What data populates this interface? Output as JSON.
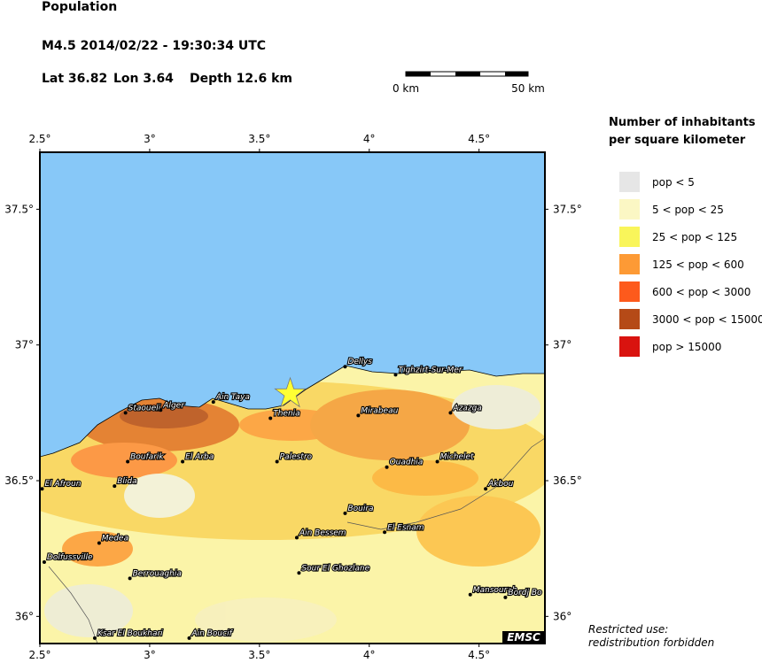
{
  "header": {
    "title": "Population",
    "event": "M4.5  2014/02/22 - 19:30:34 UTC",
    "lat": "Lat 36.82",
    "lon": "Lon 3.64",
    "depth": "Depth  12.6 km"
  },
  "scale": {
    "start": "0 km",
    "end": "50 km"
  },
  "map": {
    "lonlim": [
      2.5,
      4.8
    ],
    "latlim": [
      35.9,
      37.71
    ],
    "lonticks": [
      {
        "value": 2.5,
        "label": "2.5°"
      },
      {
        "value": 3,
        "label": "3°"
      },
      {
        "value": 3.5,
        "label": "3.5°"
      },
      {
        "value": 4,
        "label": "4°"
      },
      {
        "value": 4.5,
        "label": "4.5°"
      }
    ],
    "latticks": [
      {
        "value": 36,
        "label": "36°"
      },
      {
        "value": 36.5,
        "label": "36.5°"
      },
      {
        "value": 37,
        "label": "37°"
      },
      {
        "value": 37.5,
        "label": "37.5°"
      }
    ],
    "epicenter": {
      "lon": 3.64,
      "lat": 36.82
    },
    "cities": [
      {
        "name": "Dellys",
        "lon": 3.89,
        "lat": 36.92
      },
      {
        "name": "Tighzirt-Sur-Mer",
        "lon": 4.12,
        "lat": 36.89
      },
      {
        "name": "Staoueli",
        "lon": 2.89,
        "lat": 36.75
      },
      {
        "name": "Alger",
        "lon": 3.05,
        "lat": 36.76
      },
      {
        "name": "Ain Taya",
        "lon": 3.29,
        "lat": 36.79
      },
      {
        "name": "Thenia",
        "lon": 3.55,
        "lat": 36.73
      },
      {
        "name": "Mirabeau",
        "lon": 3.95,
        "lat": 36.74
      },
      {
        "name": "Azazga",
        "lon": 4.37,
        "lat": 36.75
      },
      {
        "name": "Boufarik",
        "lon": 2.9,
        "lat": 36.57
      },
      {
        "name": "El Arba",
        "lon": 3.15,
        "lat": 36.57
      },
      {
        "name": "Palestro",
        "lon": 3.58,
        "lat": 36.57
      },
      {
        "name": "Ouadhia",
        "lon": 4.08,
        "lat": 36.55
      },
      {
        "name": "Michelet",
        "lon": 4.31,
        "lat": 36.57
      },
      {
        "name": "El Afroun",
        "lon": 2.51,
        "lat": 36.47
      },
      {
        "name": "Blida",
        "lon": 2.84,
        "lat": 36.48
      },
      {
        "name": "Akbou",
        "lon": 4.53,
        "lat": 36.47
      },
      {
        "name": "Bouira",
        "lon": 3.89,
        "lat": 36.38
      },
      {
        "name": "El Esnam",
        "lon": 4.07,
        "lat": 36.31
      },
      {
        "name": "Ain Bessem",
        "lon": 3.67,
        "lat": 36.29
      },
      {
        "name": "Medea",
        "lon": 2.77,
        "lat": 36.27
      },
      {
        "name": "Dolfussville",
        "lon": 2.52,
        "lat": 36.2
      },
      {
        "name": "Berrouaghia",
        "lon": 2.91,
        "lat": 36.14
      },
      {
        "name": "Sour El Ghozlane",
        "lon": 3.68,
        "lat": 36.16
      },
      {
        "name": "Mansourah",
        "lon": 4.46,
        "lat": 36.08
      },
      {
        "name": "Bordj Bo",
        "lon": 4.62,
        "lat": 36.07
      },
      {
        "name": "Ksar El Boukhari",
        "lon": 2.75,
        "lat": 35.92
      },
      {
        "name": "Ain Boucif",
        "lon": 3.18,
        "lat": 35.92
      }
    ],
    "badge": "EMSC"
  },
  "legend": {
    "title": [
      "Number of inhabitants",
      "per square kilometer"
    ],
    "entries": [
      {
        "label": "pop < 5",
        "color": "#e6e6e6"
      },
      {
        "label": "5 < pop < 25",
        "color": "#fbf7c4"
      },
      {
        "label": "25 < pop < 125",
        "color": "#f9f55a"
      },
      {
        "label": "125 < pop < 600",
        "color": "#fd9a35"
      },
      {
        "label": "600 < pop < 3000",
        "color": "#fd5a1c"
      },
      {
        "label": "3000 < pop < 15000",
        "color": "#b54a17"
      },
      {
        "label": "pop > 15000",
        "color": "#d9130f"
      }
    ]
  },
  "footer": [
    "Restricted use:",
    "redistribution forbidden"
  ]
}
